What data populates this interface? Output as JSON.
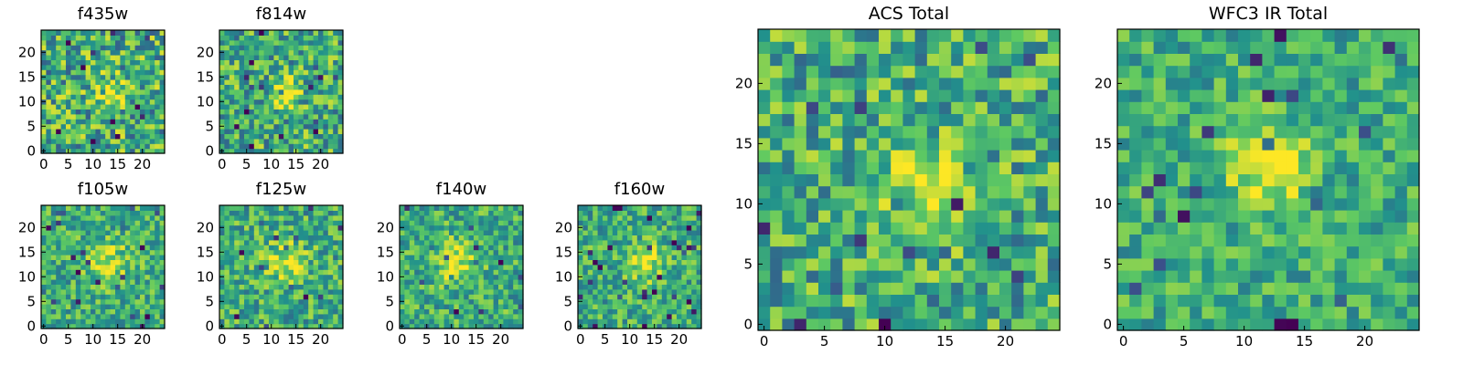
{
  "chart_data": [
    {
      "id": "f435w",
      "type": "heatmap",
      "title": "f435w",
      "xticks": [
        0,
        5,
        10,
        15,
        20
      ],
      "yticks": [
        0,
        5,
        10,
        15,
        20
      ],
      "xlim": [
        -0.5,
        24.5
      ],
      "ylim": [
        -0.5,
        24.5
      ],
      "grid_size": 25,
      "peak": [
        14,
        12
      ],
      "peak_width": 2.5,
      "peak_strength": 0.22,
      "noise": 0.42,
      "seed": 11,
      "grid": false
    },
    {
      "id": "f814w",
      "type": "heatmap",
      "title": "f814w",
      "xticks": [
        0,
        5,
        10,
        15,
        20
      ],
      "yticks": [
        0,
        5,
        10,
        15,
        20
      ],
      "xlim": [
        -0.5,
        24.5
      ],
      "ylim": [
        -0.5,
        24.5
      ],
      "grid_size": 25,
      "peak": [
        13,
        12
      ],
      "peak_width": 2.0,
      "peak_strength": 0.35,
      "noise": 0.38,
      "seed": 23,
      "grid": false
    },
    {
      "id": "f105w",
      "type": "heatmap",
      "title": "f105w",
      "xticks": [
        0,
        5,
        10,
        15,
        20
      ],
      "yticks": [
        0,
        5,
        10,
        15,
        20
      ],
      "xlim": [
        -0.5,
        24.5
      ],
      "ylim": [
        -0.5,
        24.5
      ],
      "grid_size": 25,
      "peak": [
        13,
        13
      ],
      "peak_width": 3.0,
      "peak_strength": 0.3,
      "noise": 0.3,
      "seed": 37,
      "grid": false
    },
    {
      "id": "f125w",
      "type": "heatmap",
      "title": "f125w",
      "xticks": [
        0,
        5,
        10,
        15,
        20
      ],
      "yticks": [
        0,
        5,
        10,
        15,
        20
      ],
      "xlim": [
        -0.5,
        24.5
      ],
      "ylim": [
        -0.5,
        24.5
      ],
      "grid_size": 25,
      "peak": [
        13,
        13
      ],
      "peak_width": 3.0,
      "peak_strength": 0.28,
      "noise": 0.32,
      "seed": 41,
      "grid": false
    },
    {
      "id": "f140w",
      "type": "heatmap",
      "title": "f140w",
      "xticks": [
        0,
        5,
        10,
        15,
        20
      ],
      "yticks": [
        0,
        5,
        10,
        15,
        20
      ],
      "xlim": [
        -0.5,
        24.5
      ],
      "ylim": [
        -0.5,
        24.5
      ],
      "grid_size": 25,
      "peak": [
        11,
        13
      ],
      "peak_width": 3.0,
      "peak_strength": 0.3,
      "noise": 0.3,
      "seed": 53,
      "grid": false
    },
    {
      "id": "f160w",
      "type": "heatmap",
      "title": "f160w",
      "xticks": [
        0,
        5,
        10,
        15,
        20
      ],
      "yticks": [
        0,
        5,
        10,
        15,
        20
      ],
      "xlim": [
        -0.5,
        24.5
      ],
      "ylim": [
        -0.5,
        24.5
      ],
      "grid_size": 25,
      "peak": [
        13,
        13
      ],
      "peak_width": 2.5,
      "peak_strength": 0.35,
      "noise": 0.3,
      "seed": 67,
      "grid": false
    },
    {
      "id": "acs_total",
      "type": "heatmap",
      "title": "ACS Total",
      "xticks": [
        0,
        5,
        10,
        15,
        20
      ],
      "yticks": [
        0,
        5,
        10,
        15,
        20
      ],
      "xlim": [
        -0.5,
        24.5
      ],
      "ylim": [
        -0.5,
        24.5
      ],
      "grid_size": 25,
      "peak": [
        13,
        12
      ],
      "peak_width": 2.6,
      "peak_strength": 0.3,
      "noise": 0.36,
      "seed": 79,
      "grid": false
    },
    {
      "id": "wfc3_ir_total",
      "type": "heatmap",
      "title": "WFC3 IR Total",
      "xticks": [
        0,
        5,
        10,
        15,
        20
      ],
      "yticks": [
        0,
        5,
        10,
        15,
        20
      ],
      "xlim": [
        -0.5,
        24.5
      ],
      "ylim": [
        -0.5,
        24.5
      ],
      "grid_size": 25,
      "peak": [
        12,
        13
      ],
      "peak_width": 2.3,
      "peak_strength": 0.4,
      "noise": 0.26,
      "seed": 97,
      "grid": false
    }
  ],
  "colormap": [
    "#440154",
    "#3b528b",
    "#21918c",
    "#5ec962",
    "#fde725"
  ]
}
